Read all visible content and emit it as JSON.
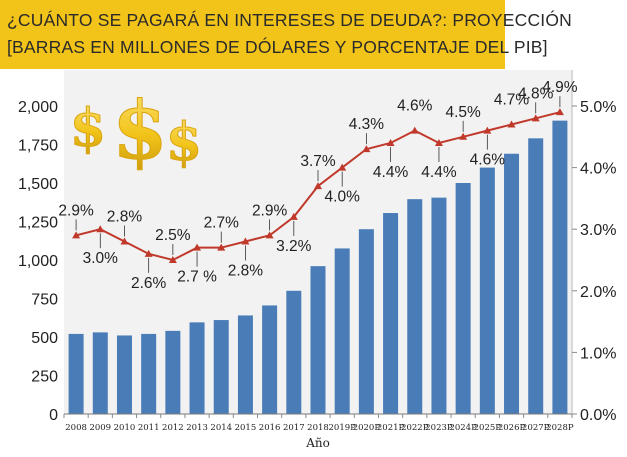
{
  "title": {
    "line1": "¿CUÁNTO SE PAGARÁ EN INTERESES DE DEUDA?: PROYECCIÓN",
    "line2": "[BARRAS EN MILLONES DE DÓLARES Y PORCENTAJE DEL PIB]"
  },
  "decoration": {
    "dollar_symbol": "$",
    "accent_gold": "#f2c419"
  },
  "colors": {
    "bar": "#4a7cb8",
    "line": "#c0392b",
    "title_bg": "#f2c419",
    "plot_bg": "#f2f2f2"
  },
  "chart_data": {
    "type": "bar",
    "title": "¿CUÁNTO SE PAGARÁ EN INTERESES DE DEUDA?: PROYECCIÓN [BARRAS EN MILLONES DE DÓLARES Y PORCENTAJE DEL PIB]",
    "xlabel": "Año",
    "ylabel": "",
    "categories": [
      "2008",
      "2009",
      "2010",
      "2011",
      "2012",
      "2013",
      "2014",
      "2015",
      "2016",
      "2017",
      "2018",
      "2019P",
      "2020P",
      "2021P",
      "2022P",
      "2023P",
      "2024P",
      "2025P",
      "2026P",
      "2027P",
      "2028P"
    ],
    "series": [
      {
        "type": "bar",
        "axis": "left",
        "values": [
          520,
          530,
          510,
          520,
          540,
          595,
          610,
          640,
          705,
          800,
          960,
          1075,
          1200,
          1305,
          1395,
          1405,
          1500,
          1600,
          1690,
          1790,
          1905
        ]
      },
      {
        "type": "line",
        "axis": "right",
        "marker": "triangle",
        "values": [
          2.9,
          3.0,
          2.8,
          2.6,
          2.5,
          2.7,
          2.7,
          2.8,
          2.9,
          3.2,
          3.7,
          4.0,
          4.3,
          4.4,
          4.6,
          4.4,
          4.5,
          4.6,
          4.7,
          4.8,
          4.9
        ],
        "labels": [
          "2.9%",
          "3.0%",
          "2.8%",
          "2.6%",
          "2.5%",
          "2.7 %",
          "2.7%",
          "2.8%",
          "2.9%",
          "3.2%",
          "3.7%",
          "4.0%",
          "4.3%",
          "4.4%",
          "4.6%",
          "4.4%",
          "4.5%",
          "4.6%",
          "4.7%",
          "4.8%",
          "4.9%"
        ]
      }
    ],
    "ylim": [
      0,
      2000
    ],
    "y_ticks": [
      "0",
      "250",
      "500",
      "750",
      "1,000",
      "1,250",
      "1,500",
      "1,750",
      "2,000"
    ],
    "y2lim": [
      0,
      5
    ],
    "y2_ticks": [
      "0.0%",
      "1.0%",
      "2.0%",
      "3.0%",
      "4.0%",
      "5.0%"
    ],
    "grid": false,
    "legend": "none"
  }
}
